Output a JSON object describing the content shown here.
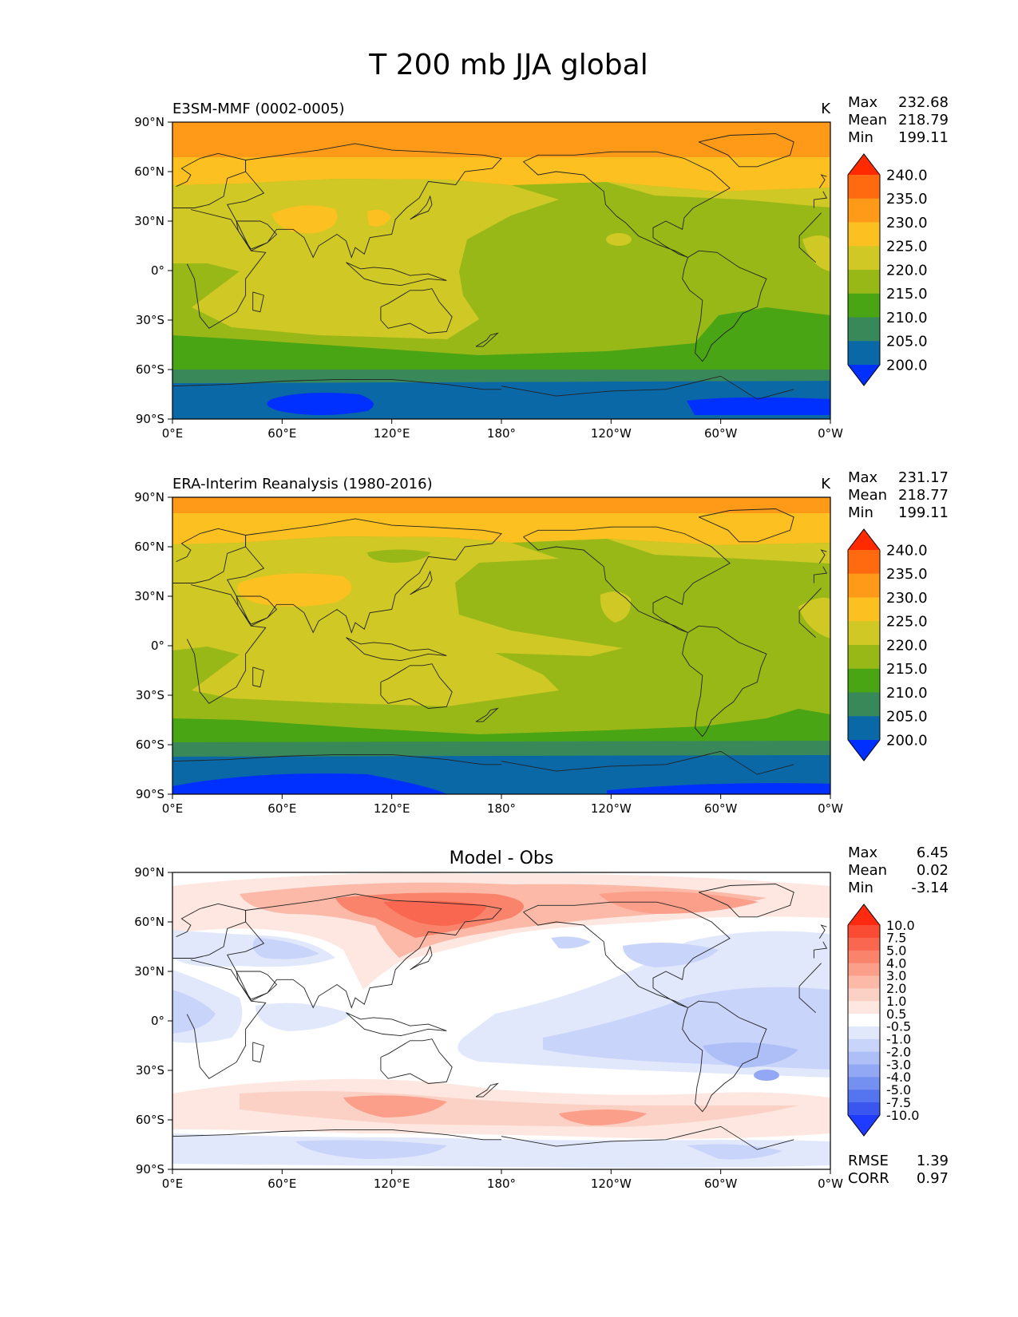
{
  "title": "T 200 mb JJA global",
  "xticks": [
    "0°E",
    "60°E",
    "120°E",
    "180°",
    "120°W",
    "60°W",
    "0°W"
  ],
  "yticks": [
    "90°N",
    "60°N",
    "30°N",
    "0°",
    "30°S",
    "60°S",
    "90°S"
  ],
  "panels": [
    {
      "id": "model",
      "left_title": "E3SM-MMF (0002-0005)",
      "center_title": "",
      "units": "K",
      "stats": [
        {
          "label": "Max",
          "value": "232.68"
        },
        {
          "label": "Mean",
          "value": "218.79"
        },
        {
          "label": "Min",
          "value": "199.11"
        }
      ],
      "extra_stats": []
    },
    {
      "id": "obs",
      "left_title": "ERA-Interim Reanalysis (1980-2016)",
      "center_title": "",
      "units": "K",
      "stats": [
        {
          "label": "Max",
          "value": "231.17"
        },
        {
          "label": "Mean",
          "value": "218.77"
        },
        {
          "label": "Min",
          "value": "199.11"
        }
      ],
      "extra_stats": []
    },
    {
      "id": "diff",
      "left_title": "",
      "center_title": "Model - Obs",
      "units": "",
      "stats": [
        {
          "label": "Max",
          "value": "6.45"
        },
        {
          "label": "Mean",
          "value": "0.02"
        },
        {
          "label": "Min",
          "value": "-3.14"
        }
      ],
      "extra_stats": [
        {
          "label": "RMSE",
          "value": "1.39"
        },
        {
          "label": "CORR",
          "value": "0.97"
        }
      ]
    }
  ],
  "colorbars": {
    "field": {
      "levels": [
        "240.0",
        "235.0",
        "230.0",
        "225.0",
        "220.0",
        "215.0",
        "210.0",
        "205.0",
        "200.0"
      ],
      "colors": [
        "#ff2a00",
        "#ff6a10",
        "#ff9a18",
        "#fcc020",
        "#d0c824",
        "#98b818",
        "#4aa514",
        "#38885a",
        "#0a68a6",
        "#0030ff"
      ]
    },
    "diff": {
      "levels": [
        "10.0",
        "7.5",
        "5.0",
        "4.0",
        "3.0",
        "2.0",
        "1.0",
        "0.5",
        "-0.5",
        "-1.0",
        "-2.0",
        "-3.0",
        "-4.0",
        "-5.0",
        "-7.5",
        "-10.0"
      ],
      "colors": [
        "#ff2a10",
        "#fa4b35",
        "#f96751",
        "#fa836c",
        "#fb9f8b",
        "#fcb9a8",
        "#fcd1c5",
        "#fde7e0",
        "#ffffff",
        "#e2e8fc",
        "#c9d4fa",
        "#aebff7",
        "#93a8f4",
        "#7490f1",
        "#5574ef",
        "#3a56ee",
        "#1e3bff"
      ]
    }
  }
}
